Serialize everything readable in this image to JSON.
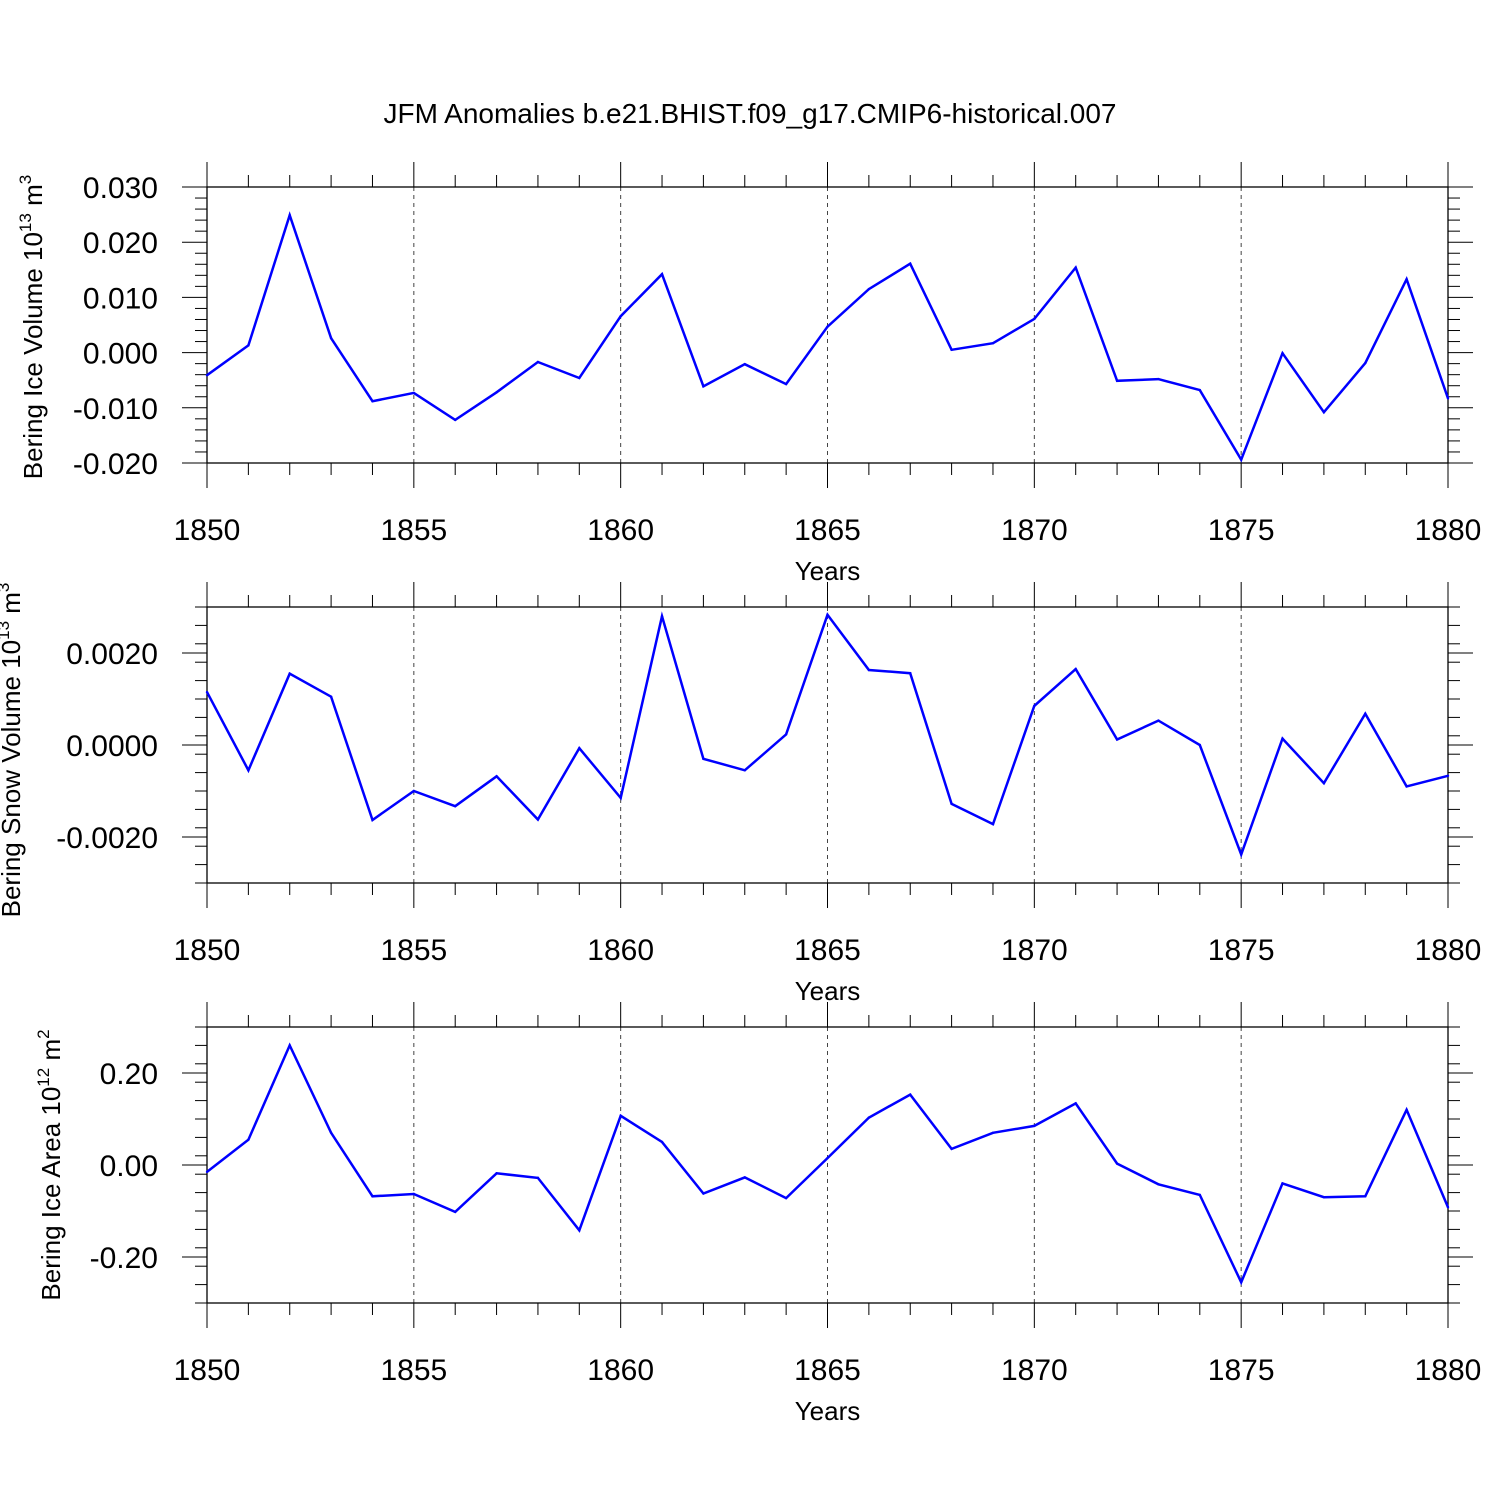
{
  "title": "JFM Anomalies b.e21.BHIST.f09_g17.CMIP6-historical.007",
  "line_color": "#0000ff",
  "chart_data": [
    {
      "type": "line",
      "ylabel_main": "Bering Ice Volume 10",
      "ylabel_exp": "13",
      "ylabel_unit": " m",
      "ylabel_unit_exp": "3",
      "xlabel": "Years",
      "xlim": [
        1850,
        1880
      ],
      "ylim": [
        -0.02,
        0.03
      ],
      "xticks": [
        1850,
        1855,
        1860,
        1865,
        1870,
        1875,
        1880
      ],
      "xtick_labels": [
        "1850",
        "1855",
        "1860",
        "1865",
        "1870",
        "1875",
        "1880"
      ],
      "yticks": [
        -0.02,
        -0.01,
        0.0,
        0.01,
        0.02,
        0.03
      ],
      "ytick_labels": [
        "-0.020",
        "-0.010",
        "0.000",
        "0.010",
        "0.020",
        "0.030"
      ],
      "x": [
        1850,
        1851,
        1852,
        1853,
        1854,
        1855,
        1856,
        1857,
        1858,
        1859,
        1860,
        1861,
        1862,
        1863,
        1864,
        1865,
        1866,
        1867,
        1868,
        1869,
        1870,
        1871,
        1872,
        1873,
        1874,
        1875,
        1876,
        1877,
        1878,
        1879,
        1880
      ],
      "values": [
        -0.0041,
        0.0013,
        0.0249,
        0.0026,
        -0.0088,
        -0.0073,
        -0.0122,
        -0.0072,
        -0.0017,
        -0.0046,
        0.0066,
        0.0142,
        -0.0061,
        -0.0021,
        -0.0057,
        0.0047,
        0.0115,
        0.0161,
        0.0005,
        0.0017,
        0.0061,
        0.0154,
        -0.0051,
        -0.0048,
        -0.0068,
        -0.0194,
        -0.0001,
        -0.0108,
        -0.0019,
        0.0133,
        -0.0083
      ]
    },
    {
      "type": "line",
      "ylabel_main": "Bering Snow Volume 10",
      "ylabel_exp": "13",
      "ylabel_unit": " m",
      "ylabel_unit_exp": "3",
      "xlabel": "Years",
      "xlim": [
        1850,
        1880
      ],
      "ylim": [
        -0.003,
        0.003
      ],
      "xticks": [
        1850,
        1855,
        1860,
        1865,
        1870,
        1875,
        1880
      ],
      "xtick_labels": [
        "1850",
        "1855",
        "1860",
        "1865",
        "1870",
        "1875",
        "1880"
      ],
      "yticks": [
        -0.002,
        0.0,
        0.002
      ],
      "ytick_labels": [
        "-0.0020",
        "0.0000",
        "0.0020"
      ],
      "x": [
        1850,
        1851,
        1852,
        1853,
        1854,
        1855,
        1856,
        1857,
        1858,
        1859,
        1860,
        1861,
        1862,
        1863,
        1864,
        1865,
        1866,
        1867,
        1868,
        1869,
        1870,
        1871,
        1872,
        1873,
        1874,
        1875,
        1876,
        1877,
        1878,
        1879,
        1880
      ],
      "values": [
        0.00115,
        -0.00055,
        0.00155,
        0.00105,
        -0.00163,
        -0.001,
        -0.00133,
        -0.00068,
        -0.00162,
        -7e-05,
        -0.00115,
        0.0028,
        -0.0003,
        -0.00055,
        0.00023,
        0.00283,
        0.00163,
        0.00156,
        -0.00128,
        -0.00172,
        0.00085,
        0.00165,
        0.00012,
        0.00053,
        0.0,
        -0.00238,
        0.00014,
        -0.00083,
        0.00068,
        -0.0009,
        -0.00067
      ]
    },
    {
      "type": "line",
      "ylabel_main": "Bering Ice Area 10",
      "ylabel_exp": "12",
      "ylabel_unit": " m",
      "ylabel_unit_exp": "2",
      "xlabel": "Years",
      "xlim": [
        1850,
        1880
      ],
      "ylim": [
        -0.3,
        0.3
      ],
      "xticks": [
        1850,
        1855,
        1860,
        1865,
        1870,
        1875,
        1880
      ],
      "xtick_labels": [
        "1850",
        "1855",
        "1860",
        "1865",
        "1870",
        "1875",
        "1880"
      ],
      "yticks": [
        -0.2,
        0.0,
        0.2
      ],
      "ytick_labels": [
        "-0.20",
        "0.00",
        "0.20"
      ],
      "x": [
        1850,
        1851,
        1852,
        1853,
        1854,
        1855,
        1856,
        1857,
        1858,
        1859,
        1860,
        1861,
        1862,
        1863,
        1864,
        1865,
        1866,
        1867,
        1868,
        1869,
        1870,
        1871,
        1872,
        1873,
        1874,
        1875,
        1876,
        1877,
        1878,
        1879,
        1880
      ],
      "values": [
        -0.015,
        0.055,
        0.26,
        0.07,
        -0.068,
        -0.063,
        -0.102,
        -0.018,
        -0.028,
        -0.142,
        0.107,
        0.05,
        -0.062,
        -0.027,
        -0.072,
        0.015,
        0.103,
        0.153,
        0.035,
        0.07,
        0.085,
        0.134,
        0.003,
        -0.042,
        -0.065,
        -0.255,
        -0.04,
        -0.07,
        -0.068,
        0.12,
        -0.092
      ]
    }
  ]
}
